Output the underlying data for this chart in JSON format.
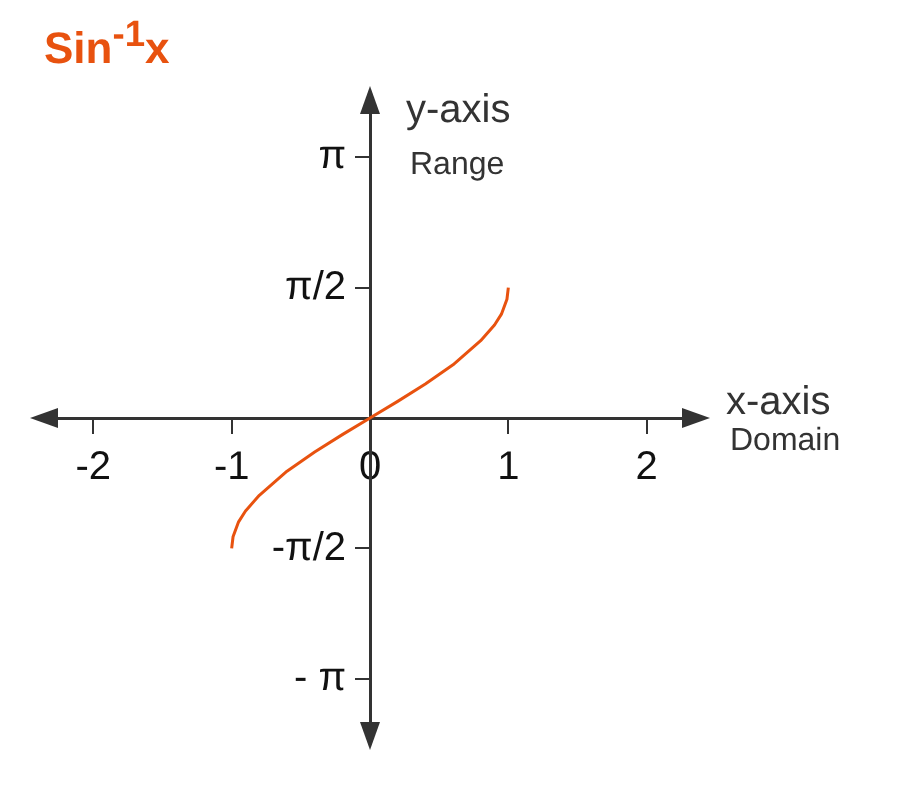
{
  "chart_data": {
    "type": "line",
    "title": "Sin$^{-1}$x",
    "xlabel": "x-axis",
    "ylabel": "y-axis",
    "annotations": [
      "Domain",
      "Range"
    ],
    "x": [
      -1,
      -0.99,
      -0.95,
      -0.9,
      -0.8,
      -0.6,
      -0.4,
      -0.2,
      0,
      0.2,
      0.4,
      0.6,
      0.8,
      0.9,
      0.95,
      0.99,
      1
    ],
    "series": [
      {
        "color": "#e8520f",
        "values": [
          -1.57,
          -1.43,
          -1.25,
          -1.12,
          -0.93,
          -0.64,
          -0.41,
          -0.2,
          0,
          0.2,
          0.41,
          0.64,
          0.93,
          1.12,
          1.25,
          1.43,
          1.57
        ]
      }
    ],
    "xlim": [
      -2.4,
      2.4
    ],
    "ylim": [
      -3.9,
      3.9
    ],
    "xticks": [
      -2,
      -1,
      0,
      1,
      2
    ],
    "yticks": [
      {
        "value": -3.1416,
        "label": "- π"
      },
      {
        "value": -1.5708,
        "label": "-π/2"
      },
      {
        "value": 1.5708,
        "label": "π/2"
      },
      {
        "value": 3.1416,
        "label": "π"
      }
    ],
    "grid": false,
    "legend": false,
    "marker": "none",
    "line_style": "solid"
  }
}
